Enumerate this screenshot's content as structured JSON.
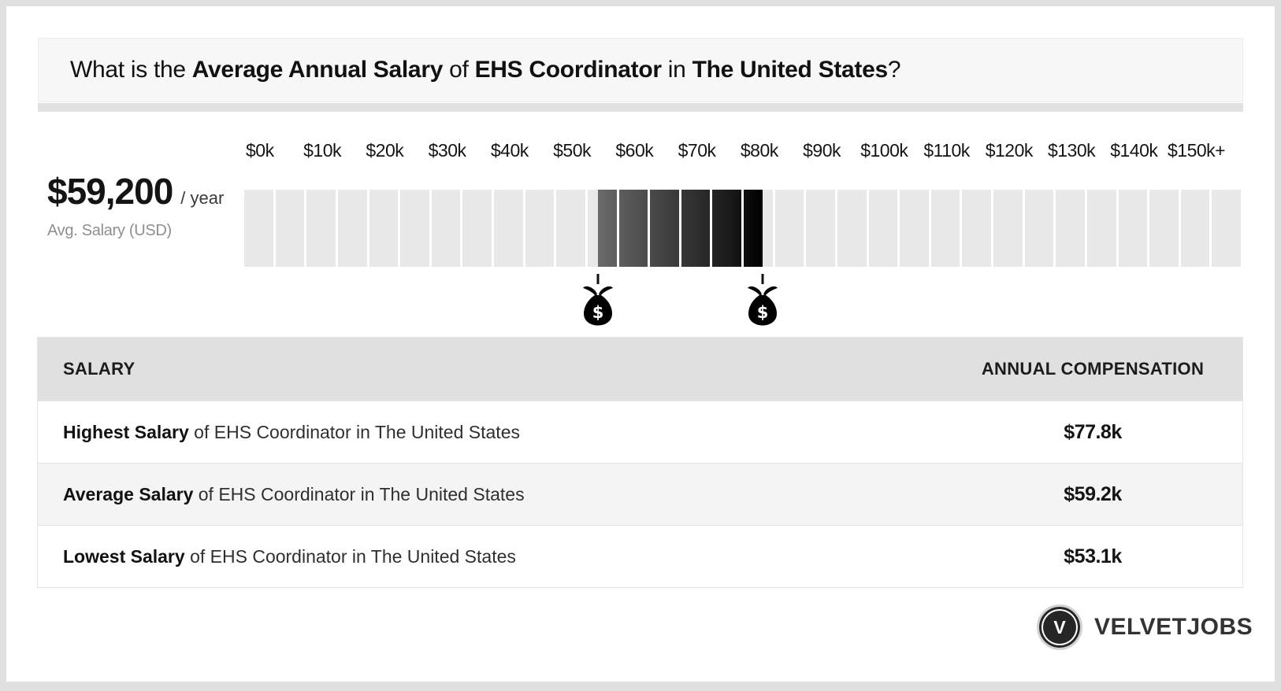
{
  "header": {
    "title_runs": [
      {
        "text": "What is the ",
        "bold": false
      },
      {
        "text": "Average Annual Salary",
        "bold": true
      },
      {
        "text": " of ",
        "bold": false
      },
      {
        "text": "EHS Coordinator",
        "bold": true
      },
      {
        "text": " in ",
        "bold": false
      },
      {
        "text": "The United States",
        "bold": true
      },
      {
        "text": "?",
        "bold": false
      }
    ]
  },
  "summary": {
    "amount": "$59,200",
    "per": "/ year",
    "caption": "Avg. Salary (USD)"
  },
  "scale": {
    "tick_labels": [
      "$0k",
      "$10k",
      "$20k",
      "$30k",
      "$40k",
      "$50k",
      "$60k",
      "$70k",
      "$80k",
      "$90k",
      "$100k",
      "$110k",
      "$120k",
      "$130k",
      "$140k",
      "$150k+"
    ],
    "cells": 32,
    "axis_max_k": 150,
    "range_low_k": 53.1,
    "range_high_k": 77.8,
    "base_cell_color": "#e8e8e8",
    "gradient_from": "#6a6a6a",
    "gradient_mid": "#1a1a1a",
    "gradient_to": "#000000"
  },
  "table": {
    "columns": [
      "SALARY",
      "ANNUAL COMPENSATION"
    ],
    "rows": [
      {
        "strong": "Highest Salary",
        "rest": " of EHS Coordinator in The United States",
        "value": "$77.8k"
      },
      {
        "strong": "Average Salary",
        "rest": " of EHS Coordinator in The United States",
        "value": "$59.2k"
      },
      {
        "strong": "Lowest Salary",
        "rest": " of EHS Coordinator in The United States",
        "value": "$53.1k"
      }
    ]
  },
  "logo": {
    "initial": "V",
    "brand": "VELVETJOBS"
  },
  "chart_data": {
    "type": "range-bar",
    "title": "What is the Average Annual Salary of EHS Coordinator in The United States?",
    "x_tick_labels": [
      "$0k",
      "$10k",
      "$20k",
      "$30k",
      "$40k",
      "$50k",
      "$60k",
      "$70k",
      "$80k",
      "$90k",
      "$100k",
      "$110k",
      "$120k",
      "$130k",
      "$140k",
      "$150k+"
    ],
    "x_axis_range_thousands": [
      0,
      160
    ],
    "cell_size_thousands": 5,
    "highlight_range_thousands": [
      53.1,
      77.8
    ],
    "highlight_style": "gradient gray-to-black, left=lowest salary, right=highest salary, money-bag markers at both ends",
    "average_salary_usd": 59200,
    "values_thousands": {
      "highest": 77.8,
      "average": 59.2,
      "lowest": 53.1
    },
    "grid": false,
    "legend_position": "none"
  }
}
